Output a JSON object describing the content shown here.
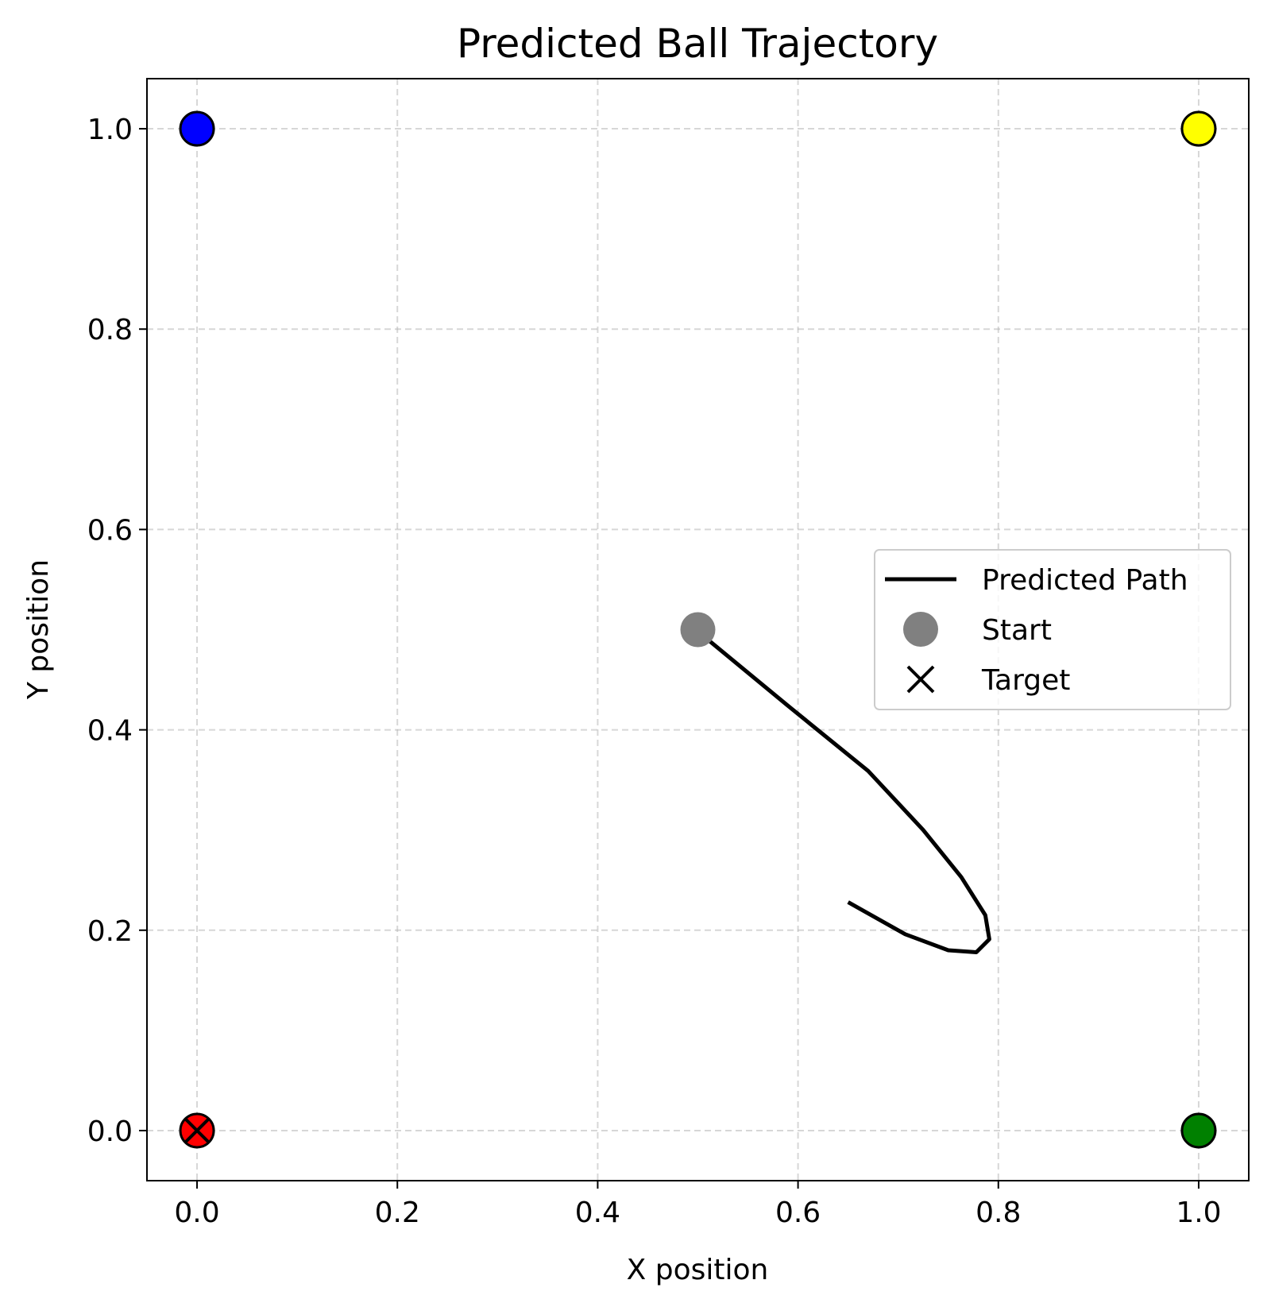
{
  "chart_data": {
    "type": "line",
    "title": "Predicted Ball Trajectory",
    "xlabel": "X position",
    "ylabel": "Y position",
    "xlim": [
      -0.05,
      1.05
    ],
    "ylim": [
      -0.05,
      1.05
    ],
    "xticks": [
      0.0,
      0.2,
      0.4,
      0.6,
      0.8,
      1.0
    ],
    "yticks": [
      0.0,
      0.2,
      0.4,
      0.6,
      0.8,
      1.0
    ],
    "xtick_labels": [
      "0.0",
      "0.2",
      "0.4",
      "0.6",
      "0.8",
      "1.0"
    ],
    "ytick_labels": [
      "0.0",
      "0.2",
      "0.4",
      "0.6",
      "0.8",
      "1.0"
    ],
    "grid": true,
    "legend_position": "center-right",
    "corners": [
      {
        "x": 0.0,
        "y": 1.0,
        "color": "#0000ff"
      },
      {
        "x": 1.0,
        "y": 1.0,
        "color": "#ffff00"
      },
      {
        "x": 0.0,
        "y": 0.0,
        "color": "#ff0000"
      },
      {
        "x": 1.0,
        "y": 0.0,
        "color": "#008000"
      }
    ],
    "series": [
      {
        "name": "Predicted Path",
        "kind": "line",
        "color": "#000000",
        "x": [
          0.5,
          0.51,
          0.59,
          0.67,
          0.725,
          0.763,
          0.787,
          0.791,
          0.778,
          0.75,
          0.707,
          0.65
        ],
        "y": [
          0.5,
          0.49,
          0.424,
          0.359,
          0.3,
          0.253,
          0.215,
          0.191,
          0.178,
          0.18,
          0.196,
          0.228
        ]
      },
      {
        "name": "Start",
        "kind": "marker",
        "marker": "circle",
        "color": "#808080",
        "x": [
          0.5
        ],
        "y": [
          0.5
        ]
      },
      {
        "name": "Target",
        "kind": "marker",
        "marker": "x",
        "color": "#000000",
        "x": [
          0.0
        ],
        "y": [
          0.0
        ]
      }
    ]
  }
}
